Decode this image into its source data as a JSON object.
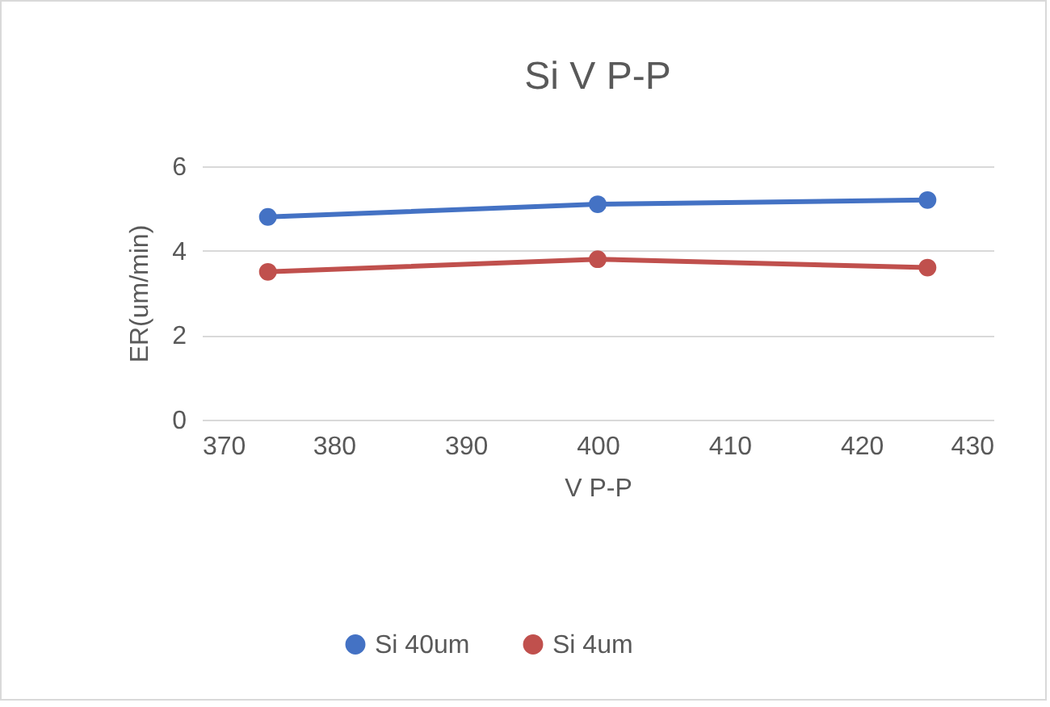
{
  "chart_data": {
    "type": "line",
    "title": "Si V P-P",
    "xlabel": "V P-P",
    "ylabel": "ER(um/min)",
    "x": [
      375,
      400,
      425
    ],
    "series": [
      {
        "name": "Si 40um",
        "color": "#4472c4",
        "values": [
          4.8,
          5.1,
          5.2
        ]
      },
      {
        "name": "Si 4um",
        "color": "#c0504d",
        "values": [
          3.5,
          3.8,
          3.6
        ]
      }
    ],
    "xlim": [
      370,
      430
    ],
    "xticks": [
      370,
      380,
      390,
      400,
      410,
      420,
      430
    ],
    "ylim": [
      0,
      6
    ],
    "yticks": [
      0,
      2,
      4,
      6
    ],
    "grid": "y",
    "legend": "bottom",
    "marker": "circle",
    "line_style": "solid"
  }
}
